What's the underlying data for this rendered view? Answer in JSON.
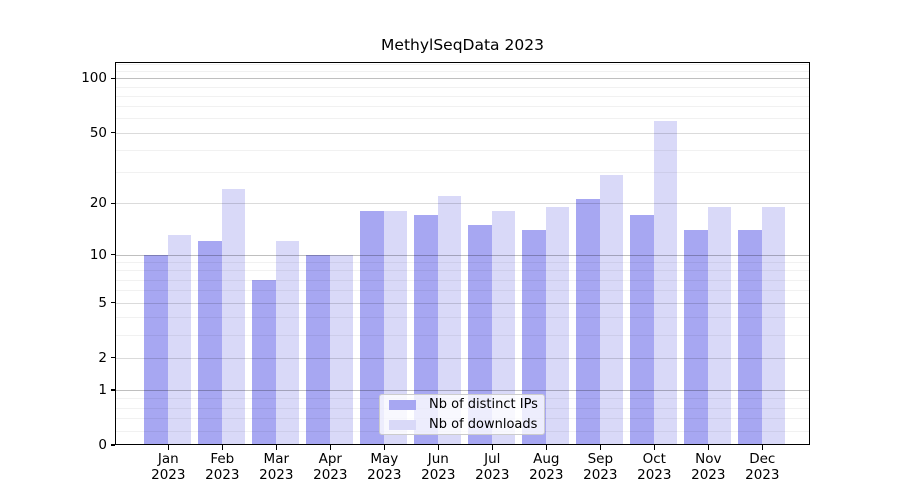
{
  "title": "MethylSeqData 2023",
  "chart_data": {
    "type": "bar",
    "title": "MethylSeqData 2023",
    "categories": [
      "Jan",
      "Feb",
      "Mar",
      "Apr",
      "May",
      "Jun",
      "Jul",
      "Aug",
      "Sep",
      "Oct",
      "Nov",
      "Dec"
    ],
    "year_label": "2023",
    "series": [
      {
        "name": "Nb of distinct IPs",
        "color": "#a7a7f2",
        "values": [
          10,
          12,
          7,
          10,
          18,
          17,
          15,
          14,
          21,
          17,
          14,
          14
        ]
      },
      {
        "name": "Nb of downloads",
        "color": "#d9d9f8",
        "values": [
          13,
          24,
          12,
          10,
          18,
          22,
          18,
          19,
          29,
          58,
          19,
          19
        ]
      }
    ],
    "xlabel": "",
    "ylabel": "",
    "y_scale": "log1p",
    "ylim": [
      0,
      123
    ],
    "y_ticks": [
      0,
      1,
      2,
      5,
      10,
      20,
      50,
      100
    ],
    "gridlines": {
      "major": [
        1,
        10,
        100
      ],
      "mid": [
        2,
        5,
        20,
        50
      ],
      "minor": [
        0.2,
        0.4,
        0.6,
        0.8,
        3,
        4,
        6,
        7,
        8,
        9,
        30,
        40,
        60,
        70,
        80,
        90,
        110,
        120
      ]
    },
    "grid": true,
    "legend_position": "bottom-center"
  }
}
